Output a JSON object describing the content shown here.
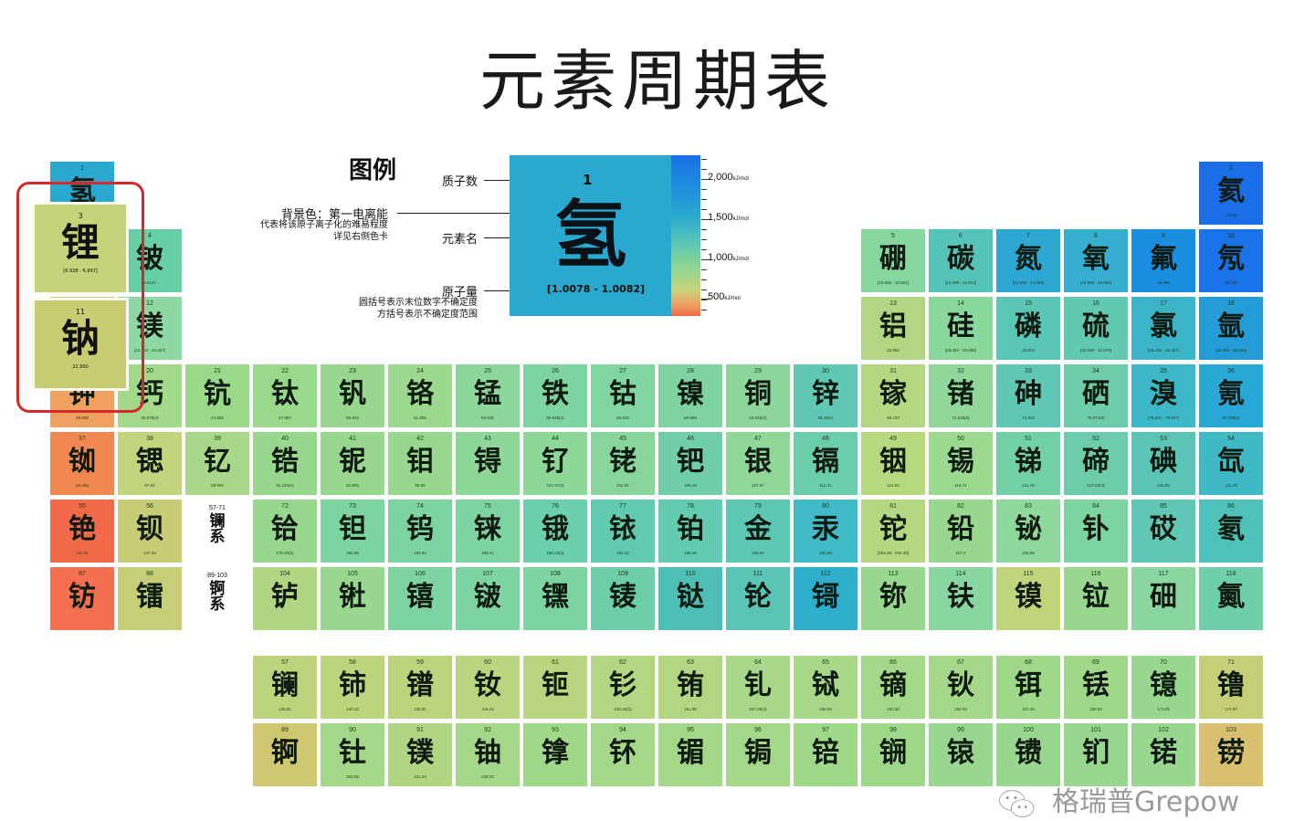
{
  "title": "元素周期表",
  "legend": {
    "heading": "图例",
    "proton_label": "质子数",
    "bg_label": "背景色：第一电离能",
    "bg_sub1": "代表将该原子离子化的难易程度",
    "bg_sub2": "详见右侧色卡",
    "name_label": "元素名",
    "weight_label": "原子量",
    "weight_sub1": "圆括号表示末位数字不确定度",
    "weight_sub2": "方括号表示不确定度范围",
    "example": {
      "z": "1",
      "name": "氢",
      "weight": "[1.0078 - 1.0082]",
      "color": "#2aa9d0"
    },
    "scale": {
      "unit": "kJ/mol",
      "ticks": [
        "2,000",
        "1,500",
        "1,000",
        "500"
      ],
      "colors": [
        "#1a6ee8",
        "#2aa9d0",
        "#5cc8b4",
        "#98d88e",
        "#f0a060",
        "#f26a4a"
      ]
    }
  },
  "series_labels": {
    "lanthanide_range": "57-71",
    "lanthanide_name": "镧系",
    "actinide_range": "89-103",
    "actinide_name": "锕系"
  },
  "highlight_color": "#d42a2a",
  "highlighted": [
    3,
    11
  ],
  "watermark": "格瑞普Grepow",
  "elements": [
    {
      "z": 1,
      "name": "氢",
      "w": "",
      "c": "#2aa9d0"
    },
    {
      "z": 2,
      "name": "氦",
      "w": "4.0026",
      "c": "#1a6ee8"
    },
    {
      "z": 3,
      "name": "锂",
      "w": "[6.938 - 6.997]",
      "c": "#c5d37a"
    },
    {
      "z": 4,
      "name": "铍",
      "w": "9.0122",
      "c": "#67cfa5"
    },
    {
      "z": 5,
      "name": "硼",
      "w": "[10.806 - 10.821]",
      "c": "#86d6a0"
    },
    {
      "z": 6,
      "name": "碳",
      "w": "[12.009 - 12.012]",
      "c": "#56c3b8"
    },
    {
      "z": 7,
      "name": "氮",
      "w": "[14.006 - 14.008]",
      "c": "#2ea8d2"
    },
    {
      "z": 8,
      "name": "氧",
      "w": "[15.999 - 16.000]",
      "c": "#36aed0"
    },
    {
      "z": 9,
      "name": "氟",
      "w": "18.998",
      "c": "#1a8ee0"
    },
    {
      "z": 10,
      "name": "氖",
      "w": "20.180",
      "c": "#1a72e8"
    },
    {
      "z": 11,
      "name": "钠",
      "w": "22.990",
      "c": "#c8cc72"
    },
    {
      "z": 12,
      "name": "镁",
      "w": "[24.304 - 24.307]",
      "c": "#8ed9a3"
    },
    {
      "z": 13,
      "name": "铝",
      "w": "26.982",
      "c": "#b2d682"
    },
    {
      "z": 14,
      "name": "硅",
      "w": "[28.084 - 28.086]",
      "c": "#8ad79c"
    },
    {
      "z": 15,
      "name": "磷",
      "w": "30.974",
      "c": "#5ac6b6"
    },
    {
      "z": 16,
      "name": "硫",
      "w": "[32.059 - 32.076]",
      "c": "#62c9b0"
    },
    {
      "z": 17,
      "name": "氯",
      "w": "[35.446 - 35.457]",
      "c": "#3cb4c8"
    },
    {
      "z": 18,
      "name": "氩",
      "w": "[39.792 - 39.963]",
      "c": "#249cd8"
    },
    {
      "z": 19,
      "name": "钾",
      "w": "39.098",
      "c": "#f0a060"
    },
    {
      "z": 20,
      "name": "钙",
      "w": "40.078(4)",
      "c": "#a2d98a"
    },
    {
      "z": 21,
      "name": "钪",
      "w": "44.956",
      "c": "#9ad88a"
    },
    {
      "z": 22,
      "name": "钛",
      "w": "47.867",
      "c": "#9ad88c"
    },
    {
      "z": 23,
      "name": "钒",
      "w": "50.942",
      "c": "#98d88e"
    },
    {
      "z": 24,
      "name": "铬",
      "w": "51.996",
      "c": "#9cd98e"
    },
    {
      "z": 25,
      "name": "锰",
      "w": "54.938",
      "c": "#8dd79a"
    },
    {
      "z": 26,
      "name": "铁",
      "w": "55.845(2)",
      "c": "#7dd4a0"
    },
    {
      "z": 27,
      "name": "钴",
      "w": "58.933",
      "c": "#80d5a0"
    },
    {
      "z": 28,
      "name": "镍",
      "w": "58.693",
      "c": "#7fd3a2"
    },
    {
      "z": 29,
      "name": "铜",
      "w": "63.546(3)",
      "c": "#8dd79a"
    },
    {
      "z": 30,
      "name": "锌",
      "w": "65.38(2)",
      "c": "#60c8b4"
    },
    {
      "z": 31,
      "name": "镓",
      "w": "69.723",
      "c": "#b5d782"
    },
    {
      "z": 32,
      "name": "锗",
      "w": "72.630(8)",
      "c": "#8fd89a"
    },
    {
      "z": 33,
      "name": "砷",
      "w": "74.922",
      "c": "#5ec8b4"
    },
    {
      "z": 34,
      "name": "硒",
      "w": "78.971(8)",
      "c": "#6dcdaa"
    },
    {
      "z": 35,
      "name": "溴",
      "w": "[79.901 - 79.907]",
      "c": "#3cb8c8"
    },
    {
      "z": 36,
      "name": "氪",
      "w": "83.798(2)",
      "c": "#28a8d4"
    },
    {
      "z": 37,
      "name": "铷",
      "w": "85.468",
      "c": "#f08850"
    },
    {
      "z": 38,
      "name": "锶",
      "w": "87.62",
      "c": "#c2d47c"
    },
    {
      "z": 39,
      "name": "钇",
      "w": "88.906",
      "c": "#a8d88a"
    },
    {
      "z": 40,
      "name": "锆",
      "w": "91.224(2)",
      "c": "#98d88e"
    },
    {
      "z": 41,
      "name": "铌",
      "w": "92.906",
      "c": "#98d88e"
    },
    {
      "z": 42,
      "name": "钼",
      "w": "95.95",
      "c": "#98d88e"
    },
    {
      "z": 43,
      "name": "锝",
      "w": "",
      "c": "#8dd898"
    },
    {
      "z": 44,
      "name": "钌",
      "w": "101.07(2)",
      "c": "#8dd898"
    },
    {
      "z": 45,
      "name": "铑",
      "w": "102.91",
      "c": "#88d69c"
    },
    {
      "z": 46,
      "name": "钯",
      "w": "106.42",
      "c": "#70cfa8"
    },
    {
      "z": 47,
      "name": "银",
      "w": "107.87",
      "c": "#8fd89a"
    },
    {
      "z": 48,
      "name": "镉",
      "w": "112.41",
      "c": "#6acdab"
    },
    {
      "z": 49,
      "name": "铟",
      "w": "114.82",
      "c": "#b8d880"
    },
    {
      "z": 50,
      "name": "锡",
      "w": "118.71",
      "c": "#9ad98e"
    },
    {
      "z": 51,
      "name": "锑",
      "w": "121.76",
      "c": "#72d0a6"
    },
    {
      "z": 52,
      "name": "碲",
      "w": "127.60(3)",
      "c": "#6dcdaa"
    },
    {
      "z": 53,
      "name": "碘",
      "w": "126.90",
      "c": "#5ac5b6"
    },
    {
      "z": 54,
      "name": "氙",
      "w": "131.29",
      "c": "#3fb9c6"
    },
    {
      "z": 55,
      "name": "铯",
      "w": "132.91",
      "c": "#f26a4a"
    },
    {
      "z": 56,
      "name": "钡",
      "w": "137.33",
      "c": "#c8cc74"
    },
    {
      "z": 57,
      "name": "镧",
      "w": "138.91",
      "c": "#bed47c"
    },
    {
      "z": 58,
      "name": "铈",
      "w": "140.12",
      "c": "#bed47c"
    },
    {
      "z": 59,
      "name": "镨",
      "w": "140.91",
      "c": "#bcd47c"
    },
    {
      "z": 60,
      "name": "钕",
      "w": "144.24",
      "c": "#b8d580"
    },
    {
      "z": 61,
      "name": "钷",
      "w": "",
      "c": "#b8d580"
    },
    {
      "z": 62,
      "name": "钐",
      "w": "150.36(2)",
      "c": "#b4d682"
    },
    {
      "z": 63,
      "name": "铕",
      "w": "151.96",
      "c": "#b4d682"
    },
    {
      "z": 64,
      "name": "钆",
      "w": "157.25(3)",
      "c": "#a8d888"
    },
    {
      "z": 65,
      "name": "铽",
      "w": "158.93",
      "c": "#a8d888"
    },
    {
      "z": 66,
      "name": "镝",
      "w": "162.50",
      "c": "#a4d888"
    },
    {
      "z": 67,
      "name": "钬",
      "w": "164.93",
      "c": "#a4d888"
    },
    {
      "z": 68,
      "name": "铒",
      "w": "167.26",
      "c": "#a0d88a"
    },
    {
      "z": 69,
      "name": "铥",
      "w": "168.93",
      "c": "#a0d88a"
    },
    {
      "z": 70,
      "name": "镱",
      "w": "173.05",
      "c": "#98d88e"
    },
    {
      "z": 71,
      "name": "镥",
      "w": "174.97",
      "c": "#c4cf76"
    },
    {
      "z": 72,
      "name": "铪",
      "w": "178.49(2)",
      "c": "#98d88e"
    },
    {
      "z": 73,
      "name": "钽",
      "w": "180.95",
      "c": "#7cd4a0"
    },
    {
      "z": 74,
      "name": "钨",
      "w": "183.84",
      "c": "#7ed4a0"
    },
    {
      "z": 75,
      "name": "铼",
      "w": "186.21",
      "c": "#7ed4a0"
    },
    {
      "z": 76,
      "name": "锇",
      "w": "190.23(3)",
      "c": "#6acfac"
    },
    {
      "z": 77,
      "name": "铱",
      "w": "192.22",
      "c": "#60cbb0"
    },
    {
      "z": 78,
      "name": "铂",
      "w": "195.08",
      "c": "#62cbb0"
    },
    {
      "z": 79,
      "name": "金",
      "w": "196.97",
      "c": "#5cc8b4"
    },
    {
      "z": 80,
      "name": "汞",
      "w": "200.59",
      "c": "#3fbac6"
    },
    {
      "z": 81,
      "name": "铊",
      "w": "[204.38 - 204.39]",
      "c": "#b6d782"
    },
    {
      "z": 82,
      "name": "铅",
      "w": "207.2",
      "c": "#98d88e"
    },
    {
      "z": 83,
      "name": "铋",
      "w": "208.98",
      "c": "#8dd89a"
    },
    {
      "z": 84,
      "name": "钋",
      "w": "",
      "c": "#7cd4a0"
    },
    {
      "z": 85,
      "name": "砹",
      "w": "",
      "c": "#60c8b4"
    },
    {
      "z": 86,
      "name": "氡",
      "w": "",
      "c": "#4ec2ba"
    },
    {
      "z": 87,
      "name": "钫",
      "w": "",
      "c": "#f47050"
    },
    {
      "z": 88,
      "name": "镭",
      "w": "",
      "c": "#c6cf76"
    },
    {
      "z": 89,
      "name": "锕",
      "w": "",
      "c": "#d0c870"
    },
    {
      "z": 90,
      "name": "钍",
      "w": "232.04",
      "c": "#a4d888"
    },
    {
      "z": 91,
      "name": "镤",
      "w": "231.04",
      "c": "#b0d684"
    },
    {
      "z": 92,
      "name": "铀",
      "w": "238.03",
      "c": "#a4d888"
    },
    {
      "z": 93,
      "name": "镎",
      "w": "",
      "c": "#a0d88a"
    },
    {
      "z": 94,
      "name": "钚",
      "w": "",
      "c": "#a4d888"
    },
    {
      "z": 95,
      "name": "镅",
      "w": "",
      "c": "#a4d888"
    },
    {
      "z": 96,
      "name": "锔",
      "w": "",
      "c": "#a4d888"
    },
    {
      "z": 97,
      "name": "锫",
      "w": "",
      "c": "#a0d88a"
    },
    {
      "z": 98,
      "name": "锎",
      "w": "",
      "c": "#a0d88a"
    },
    {
      "z": 99,
      "name": "锿",
      "w": "",
      "c": "#98d88e"
    },
    {
      "z": 100,
      "name": "镄",
      "w": "",
      "c": "#98d88e"
    },
    {
      "z": 101,
      "name": "钔",
      "w": "",
      "c": "#98d88e"
    },
    {
      "z": 102,
      "name": "锘",
      "w": "",
      "c": "#98d88e"
    },
    {
      "z": 103,
      "name": "铹",
      "w": "",
      "c": "#d8c070"
    },
    {
      "z": 104,
      "name": "𬬻",
      "w": "",
      "c": "#b0d684"
    },
    {
      "z": 105,
      "name": "𬭊",
      "w": "",
      "c": "#98d88e"
    },
    {
      "z": 106,
      "name": "𬭳",
      "w": "",
      "c": "#7ed4a0"
    },
    {
      "z": 107,
      "name": "𬭛",
      "w": "",
      "c": "#7ed4a0"
    },
    {
      "z": 108,
      "name": "𬭶",
      "w": "",
      "c": "#7cd4a0"
    },
    {
      "z": 109,
      "name": "鿏",
      "w": "",
      "c": "#6ccfa8"
    },
    {
      "z": 110,
      "name": "𫟼",
      "w": "",
      "c": "#4ebfb6"
    },
    {
      "z": 111,
      "name": "𬬭",
      "w": "",
      "c": "#5ac5b4"
    },
    {
      "z": 112,
      "name": "鿔",
      "w": "",
      "c": "#2eb0cc"
    },
    {
      "z": 113,
      "name": "鿭",
      "w": "",
      "c": "#98d88e"
    },
    {
      "z": 114,
      "name": "𫓧",
      "w": "",
      "c": "#8ad6a0"
    },
    {
      "z": 115,
      "name": "镆",
      "w": "",
      "c": "#c0d47c"
    },
    {
      "z": 116,
      "name": "𫟷",
      "w": "",
      "c": "#98d88e"
    },
    {
      "z": 117,
      "name": "鿬",
      "w": "",
      "c": "#8ad6a0"
    },
    {
      "z": 118,
      "name": "鿫",
      "w": "",
      "c": "#6fcfa8"
    }
  ]
}
